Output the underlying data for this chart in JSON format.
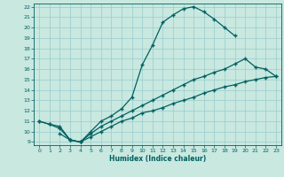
{
  "xlabel": "Humidex (Indice chaleur)",
  "bg_color": "#c8e8e0",
  "grid_color": "#99cccc",
  "line_color": "#006060",
  "marker": "+",
  "markersize": 3.5,
  "linewidth": 0.9,
  "ylim": [
    9,
    22
  ],
  "xlim": [
    -0.5,
    23.5
  ],
  "yticks": [
    9,
    10,
    11,
    12,
    13,
    14,
    15,
    16,
    17,
    18,
    19,
    20,
    21,
    22
  ],
  "xticks": [
    0,
    1,
    2,
    3,
    4,
    5,
    6,
    7,
    8,
    9,
    10,
    11,
    12,
    13,
    14,
    15,
    16,
    17,
    18,
    19,
    20,
    21,
    22,
    23
  ],
  "curve1_x": [
    0,
    1,
    2,
    3,
    4,
    5,
    6,
    7,
    8,
    9,
    10,
    11,
    12,
    13,
    14,
    15,
    16,
    17,
    18,
    19
  ],
  "curve1_y": [
    11,
    10.7,
    10.5,
    9.2,
    9.0,
    10.0,
    11.0,
    11.5,
    12.2,
    13.3,
    16.4,
    18.3,
    20.5,
    21.2,
    21.8,
    22.0,
    21.5,
    20.8,
    20.0,
    19.2
  ],
  "curve2_x": [
    0,
    1,
    2,
    3,
    4,
    5,
    6,
    7,
    8,
    9,
    10,
    11,
    12,
    13,
    14,
    15,
    16,
    17,
    18,
    19,
    20,
    21,
    22,
    23
  ],
  "curve2_y": [
    11,
    10.7,
    10.3,
    9.2,
    9.0,
    9.8,
    10.5,
    11.0,
    11.5,
    12.0,
    12.5,
    13.0,
    13.5,
    14.0,
    14.5,
    15.0,
    15.3,
    15.7,
    16.0,
    16.5,
    17.0,
    16.2,
    16.0,
    15.3
  ],
  "curve3_x": [
    2,
    3,
    4,
    5,
    6,
    7,
    8,
    9,
    10,
    11,
    12,
    13,
    14,
    15,
    16,
    17,
    18,
    19,
    20,
    21,
    22,
    23
  ],
  "curve3_y": [
    9.8,
    9.2,
    9.0,
    9.5,
    10.0,
    10.5,
    11.0,
    11.3,
    11.8,
    12.0,
    12.3,
    12.7,
    13.0,
    13.3,
    13.7,
    14.0,
    14.3,
    14.5,
    14.8,
    15.0,
    15.2,
    15.3
  ]
}
